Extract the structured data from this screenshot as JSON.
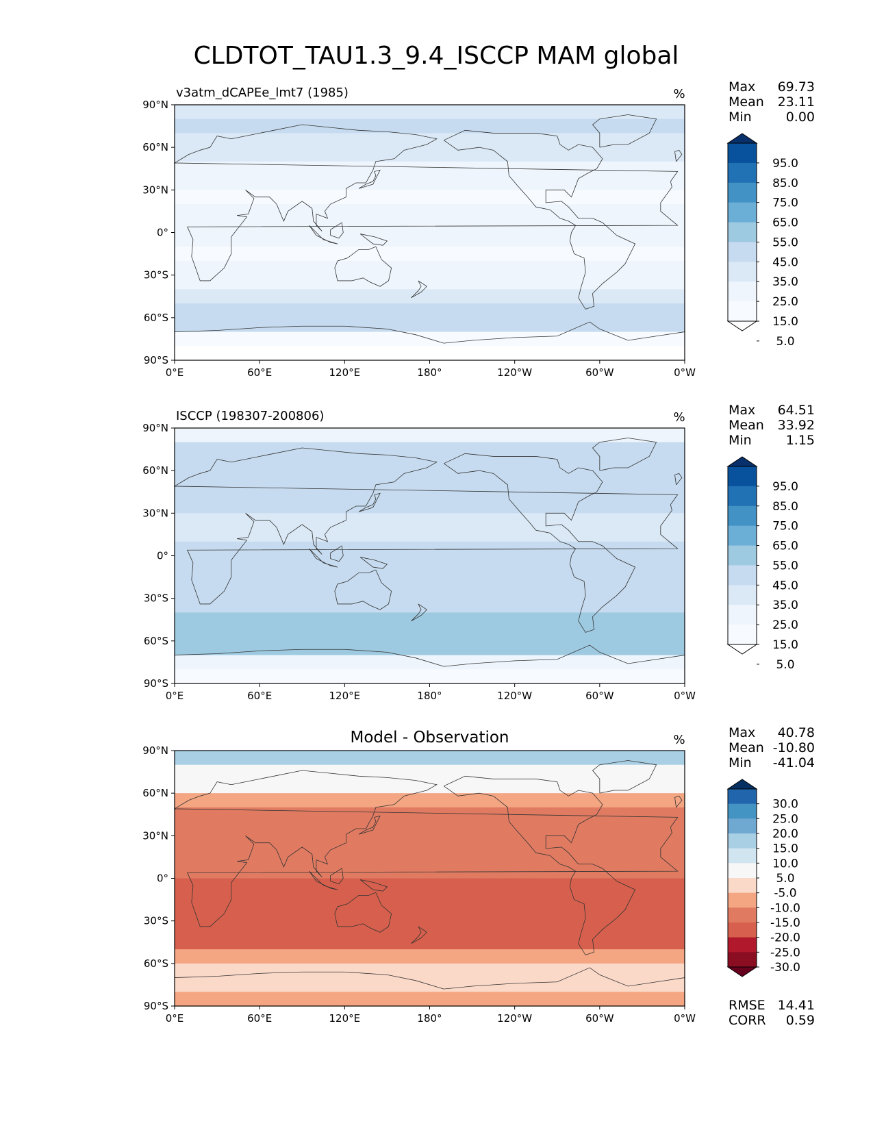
{
  "figure": {
    "title": "CLDTOT_TAU1.3_9.4_ISCCP MAM global"
  },
  "axes": {
    "lat_ticks": [
      "90°N",
      "60°N",
      "30°N",
      "0°",
      "30°S",
      "60°S",
      "90°S"
    ],
    "lon_ticks": [
      "0°E",
      "60°E",
      "120°E",
      "180°",
      "120°W",
      "60°W",
      "0°W"
    ]
  },
  "chart_data": [
    {
      "type": "heatmap",
      "panel": "test",
      "left_title": "v3atm_dCAPEe_lmt7 (1985)",
      "center_title": "",
      "units": "%",
      "stats": [
        {
          "label": "Max",
          "value": "69.73"
        },
        {
          "label": "Mean",
          "value": "23.11"
        },
        {
          "label": "Min",
          "value": "0.00"
        }
      ],
      "colorbar_labels": [
        "95.0",
        "85.0",
        "75.0",
        "65.0",
        "55.0",
        "45.0",
        "35.0",
        "25.0",
        "15.0",
        "5.0"
      ],
      "colorbar_colors": [
        "#08306b",
        "#08519c",
        "#2171b5",
        "#4292c6",
        "#6baed6",
        "#9ecae1",
        "#c6dbef",
        "#dbe9f6",
        "#eef5fc",
        "#f7fbff",
        "#ffffff"
      ],
      "xlim": [
        0,
        360
      ],
      "ylim": [
        -90,
        90
      ],
      "zonal_means": [
        {
          "lat": 85,
          "value": 34
        },
        {
          "lat": 75,
          "value": 40
        },
        {
          "lat": 65,
          "value": 32
        },
        {
          "lat": 55,
          "value": 30
        },
        {
          "lat": 45,
          "value": 24
        },
        {
          "lat": 35,
          "value": 20
        },
        {
          "lat": 25,
          "value": 14
        },
        {
          "lat": 15,
          "value": 16
        },
        {
          "lat": 5,
          "value": 20
        },
        {
          "lat": -5,
          "value": 18
        },
        {
          "lat": -15,
          "value": 14
        },
        {
          "lat": -25,
          "value": 16
        },
        {
          "lat": -35,
          "value": 22
        },
        {
          "lat": -45,
          "value": 28
        },
        {
          "lat": -55,
          "value": 36
        },
        {
          "lat": -65,
          "value": 42
        },
        {
          "lat": -75,
          "value": 8
        },
        {
          "lat": -85,
          "value": 2
        }
      ]
    },
    {
      "type": "heatmap",
      "panel": "reference",
      "left_title": "ISCCP (198307-200806)",
      "center_title": "",
      "units": "%",
      "stats": [
        {
          "label": "Max",
          "value": "64.51"
        },
        {
          "label": "Mean",
          "value": "33.92"
        },
        {
          "label": "Min",
          "value": "1.15"
        }
      ],
      "colorbar_labels": [
        "95.0",
        "85.0",
        "75.0",
        "65.0",
        "55.0",
        "45.0",
        "35.0",
        "25.0",
        "15.0",
        "5.0"
      ],
      "colorbar_colors": [
        "#08306b",
        "#08519c",
        "#2171b5",
        "#4292c6",
        "#6baed6",
        "#9ecae1",
        "#c6dbef",
        "#dbe9f6",
        "#eef5fc",
        "#f7fbff",
        "#ffffff"
      ],
      "xlim": [
        0,
        360
      ],
      "ylim": [
        -90,
        90
      ],
      "zonal_means": [
        {
          "lat": 85,
          "value": 22
        },
        {
          "lat": 75,
          "value": 38
        },
        {
          "lat": 65,
          "value": 36
        },
        {
          "lat": 55,
          "value": 40
        },
        {
          "lat": 45,
          "value": 42
        },
        {
          "lat": 35,
          "value": 36
        },
        {
          "lat": 25,
          "value": 30
        },
        {
          "lat": 15,
          "value": 32
        },
        {
          "lat": 5,
          "value": 36
        },
        {
          "lat": -5,
          "value": 38
        },
        {
          "lat": -15,
          "value": 36
        },
        {
          "lat": -25,
          "value": 38
        },
        {
          "lat": -35,
          "value": 44
        },
        {
          "lat": -45,
          "value": 48
        },
        {
          "lat": -55,
          "value": 50
        },
        {
          "lat": -65,
          "value": 48
        },
        {
          "lat": -75,
          "value": 16
        },
        {
          "lat": -85,
          "value": 12
        }
      ]
    },
    {
      "type": "heatmap",
      "panel": "difference",
      "left_title": "",
      "center_title": "Model - Observation",
      "units": "%",
      "stats": [
        {
          "label": "Max",
          "value": "40.78"
        },
        {
          "label": "Mean",
          "value": "-10.80"
        },
        {
          "label": "Min",
          "value": "-41.04"
        }
      ],
      "extra_stats": [
        {
          "label": "RMSE",
          "value": "14.41"
        },
        {
          "label": "CORR",
          "value": "0.59"
        }
      ],
      "colorbar_labels": [
        "30.0",
        "25.0",
        "20.0",
        "15.0",
        "10.0",
        "5.0",
        "-5.0",
        "-10.0",
        "-15.0",
        "-20.0",
        "-25.0",
        "-30.0"
      ],
      "colorbar_colors": [
        "#053061",
        "#2166ac",
        "#4393c3",
        "#6fa9d1",
        "#a9cfe5",
        "#d1e5f0",
        "#f7f7f7",
        "#fbd9c8",
        "#f4a582",
        "#e07b62",
        "#d6604d",
        "#b2182b",
        "#8b0d22",
        "#67001f"
      ],
      "xlim": [
        0,
        360
      ],
      "ylim": [
        -90,
        90
      ],
      "zonal_means": [
        {
          "lat": 85,
          "value": 14
        },
        {
          "lat": 75,
          "value": 4
        },
        {
          "lat": 65,
          "value": -4
        },
        {
          "lat": 55,
          "value": -10
        },
        {
          "lat": 45,
          "value": -18
        },
        {
          "lat": 35,
          "value": -16
        },
        {
          "lat": 25,
          "value": -16
        },
        {
          "lat": 15,
          "value": -16
        },
        {
          "lat": 5,
          "value": -16
        },
        {
          "lat": -5,
          "value": -20
        },
        {
          "lat": -15,
          "value": -22
        },
        {
          "lat": -25,
          "value": -22
        },
        {
          "lat": -35,
          "value": -22
        },
        {
          "lat": -45,
          "value": -20
        },
        {
          "lat": -55,
          "value": -14
        },
        {
          "lat": -65,
          "value": -6
        },
        {
          "lat": -75,
          "value": -8
        },
        {
          "lat": -85,
          "value": -10
        }
      ]
    }
  ]
}
